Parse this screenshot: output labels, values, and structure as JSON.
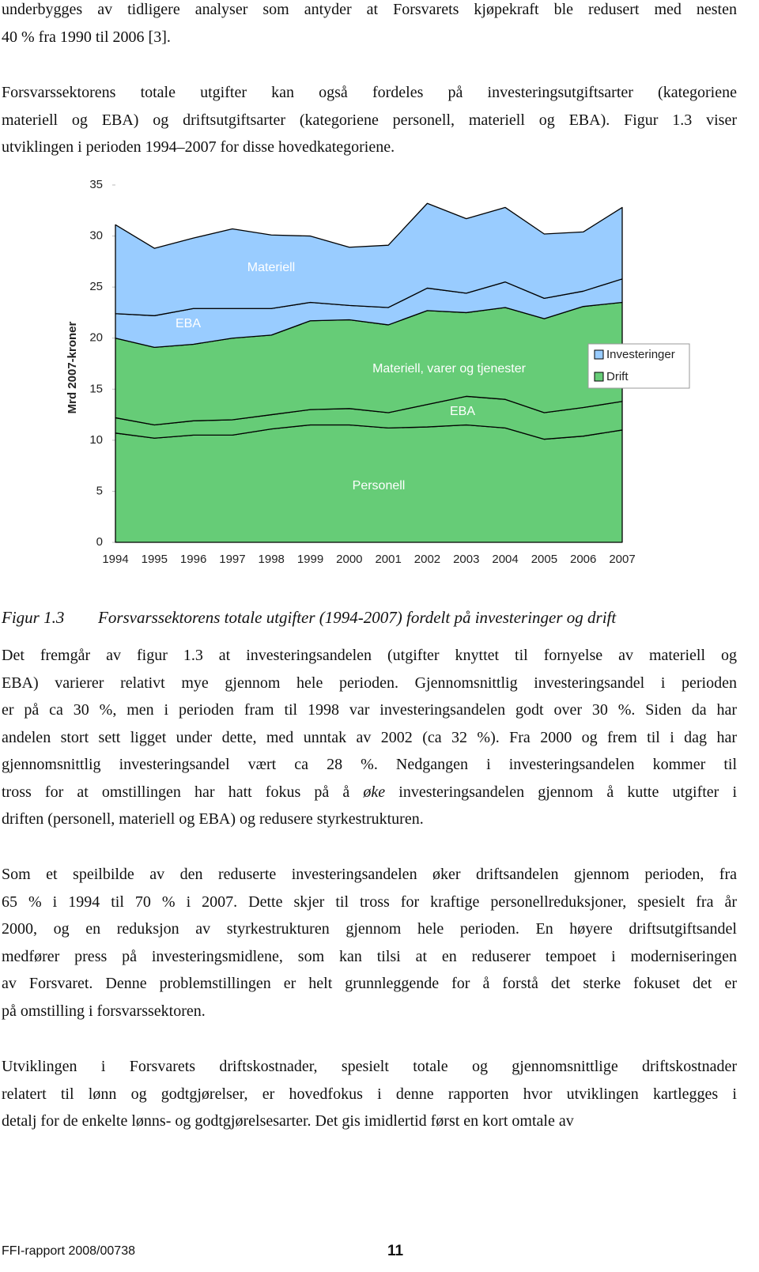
{
  "paragraphs_before": [
    {
      "lines": [
        "underbygges av tidligere analyser som antyder at Forsvarets kjøpekraft ble redusert med nesten",
        "40 % fra 1990 til 2006 [3]."
      ]
    },
    {
      "lines": [
        "Forsvarssektorens totale utgifter kan også fordeles på investeringsutgiftsarter (kategoriene",
        "materiell og EBA) og driftsutgiftsarter (kategoriene personell, materiell og EBA). Figur 1.3 viser",
        "utviklingen i perioden 1994–2007 for disse hovedkategoriene."
      ]
    }
  ],
  "chart_data": {
    "type": "stacked_area",
    "y_label": "Mrd 2007-kroner",
    "categories": [
      "1994",
      "1995",
      "1996",
      "1997",
      "1998",
      "1999",
      "2000",
      "2001",
      "2002",
      "2003",
      "2004",
      "2005",
      "2006",
      "2007"
    ],
    "ylim": [
      0,
      35
    ],
    "yticks": [
      0,
      5,
      10,
      15,
      20,
      25,
      30,
      35
    ],
    "series": [
      {
        "name": "Personell",
        "color": "#66cc77",
        "values": [
          10.7,
          10.2,
          10.5,
          10.5,
          11.1,
          11.5,
          11.5,
          11.2,
          11.3,
          11.5,
          11.2,
          10.1,
          10.4,
          11.0
        ]
      },
      {
        "name": "EBA",
        "color": "#66cc77",
        "values": [
          1.5,
          1.3,
          1.4,
          1.5,
          1.4,
          1.5,
          1.6,
          1.5,
          2.2,
          2.8,
          2.8,
          2.6,
          2.8,
          2.8
        ]
      },
      {
        "name": "Materiell, varer og tjenester",
        "color": "#66cc77",
        "values": [
          7.8,
          7.6,
          7.5,
          8.0,
          7.8,
          8.7,
          8.7,
          8.6,
          9.2,
          8.2,
          9.0,
          9.2,
          9.9,
          9.7
        ]
      },
      {
        "name": "EBA",
        "color": "#99ccff",
        "values": [
          2.4,
          3.1,
          3.5,
          2.9,
          2.6,
          1.8,
          1.4,
          1.7,
          2.2,
          1.9,
          2.5,
          2.0,
          1.5,
          2.3
        ]
      },
      {
        "name": "Materiell",
        "color": "#99ccff",
        "values": [
          8.7,
          6.6,
          6.9,
          7.8,
          7.2,
          6.5,
          5.7,
          6.1,
          8.3,
          7.3,
          7.3,
          6.3,
          5.8,
          7.0
        ]
      }
    ],
    "legend": {
      "position": "right",
      "items": [
        {
          "name": "Investeringer",
          "color": "#99ccff"
        },
        {
          "name": "Drift",
          "color": "#66cc77"
        }
      ]
    }
  },
  "caption": {
    "label": "Figur 1.3",
    "text": "Forsvarssektorens totale utgifter (1994-2007) fordelt på investeringer og drift"
  },
  "paragraphs_after": [
    {
      "lines": [
        "Det fremgår av figur 1.3 at investeringsandelen (utgifter knyttet til fornyelse av materiell og",
        "EBA) varierer relativt mye gjennom hele perioden. Gjennomsnittlig investeringsandel i perioden",
        "er på ca 30 %, men i perioden fram til 1998 var investeringsandelen godt over 30 %. Siden da har",
        "andelen stort sett ligget under dette, med unntak av 2002 (ca 32 %). Fra 2000 og frem til i dag har",
        "gjennomsnittlig investeringsandel vært ca 28 %. Nedgangen i investeringsandelen kommer til",
        {
          "before": "tross for at omstillingen har hatt fokus på å ",
          "em": "øke",
          "after": " investeringsandelen gjennom å kutte utgifter i"
        },
        "driften (personell, materiell og EBA) og redusere styrkestrukturen."
      ]
    },
    {
      "lines": [
        "Som et speilbilde av den reduserte investeringsandelen øker driftsandelen gjennom perioden, fra",
        "65 % i 1994 til 70 % i 2007. Dette skjer til tross for kraftige personellreduksjoner, spesielt fra år",
        "2000, og en reduksjon av styrkestrukturen gjennom hele perioden. En høyere driftsutgiftsandel",
        "medfører press på investeringsmidlene, som kan tilsi at en reduserer tempoet i moderniseringen",
        "av Forsvaret. Denne problemstillingen er helt grunnleggende for å forstå det sterke fokuset det er",
        "på omstilling i forsvarssektoren."
      ]
    },
    {
      "lines": [
        "Utviklingen i Forsvarets driftskostnader, spesielt totale og gjennomsnittlige driftskostnader",
        "relatert til lønn og godtgjørelser, er hovedfokus i denne rapporten hvor utviklingen kartlegges i",
        "detalj for de enkelte lønns- og godtgjørelsesarter. Det gis imidlertid først en kort omtale av"
      ]
    }
  ],
  "footer": {
    "left": "FFI-rapport 2008/00738",
    "page": "11"
  }
}
